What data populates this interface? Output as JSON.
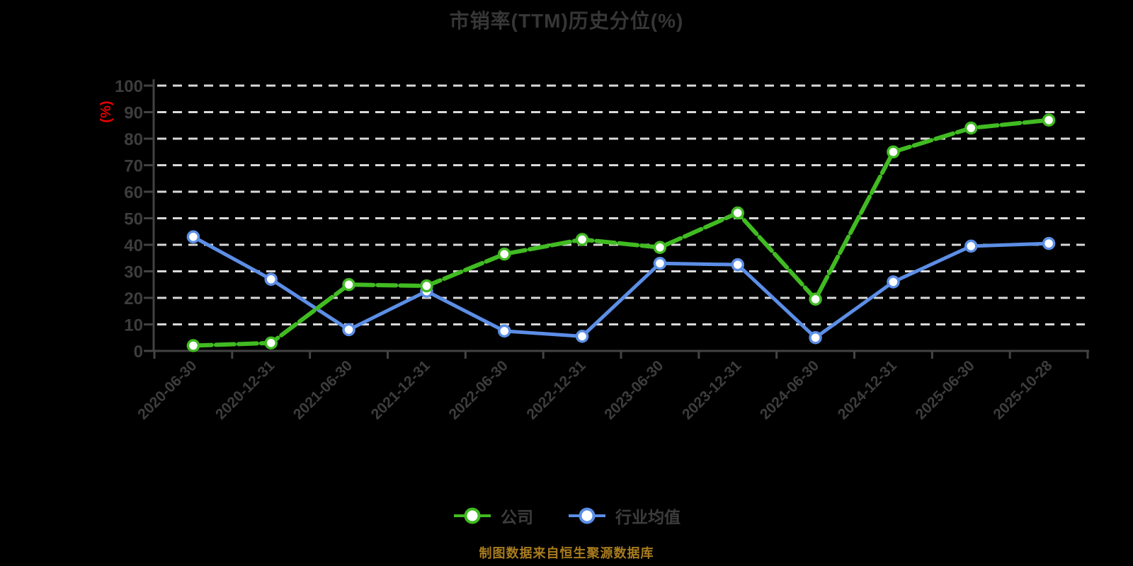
{
  "chart_data": {
    "type": "line",
    "title": "市销率(TTM)历史分位(%)",
    "ylabel": "(%)",
    "xlabel": "",
    "ylim": [
      0,
      100
    ],
    "y_ticks": [
      0,
      10,
      20,
      30,
      40,
      50,
      60,
      70,
      80,
      90,
      100
    ],
    "grid": "horizontal dashed",
    "legend_position": "bottom",
    "categories": [
      "2020-06-30",
      "2020-12-31",
      "2021-06-30",
      "2021-12-31",
      "2022-06-30",
      "2022-12-31",
      "2023-06-30",
      "2023-12-31",
      "2024-06-30",
      "2024-12-31",
      "2025-06-30",
      "2025-10-28"
    ],
    "series": [
      {
        "name": "公司",
        "color": "#41bb22",
        "line_style": "dashed",
        "marker": "circle-white-fill",
        "values": [
          2,
          3,
          25,
          24.5,
          36.5,
          42,
          39,
          52,
          19.5,
          75,
          84,
          87
        ]
      },
      {
        "name": "行业均值",
        "color": "#5c8ee6",
        "line_style": "solid",
        "marker": "circle-white-fill",
        "values": [
          43,
          27,
          8,
          22.5,
          7.5,
          5.5,
          33,
          32.5,
          5,
          26,
          39.5,
          40.5
        ]
      }
    ],
    "source_note": "制图数据来自恒生聚源数据库"
  },
  "colors": {
    "background": "#000000",
    "title": "#363636",
    "axis": "#434343",
    "tick_label": "#3d3d3d",
    "gridline": "#d9d9d9",
    "unit_label": "#e60000",
    "marker_fill": "#ffffff",
    "legend_text": "#3c3c3c",
    "source_note": "#a87c1e"
  }
}
